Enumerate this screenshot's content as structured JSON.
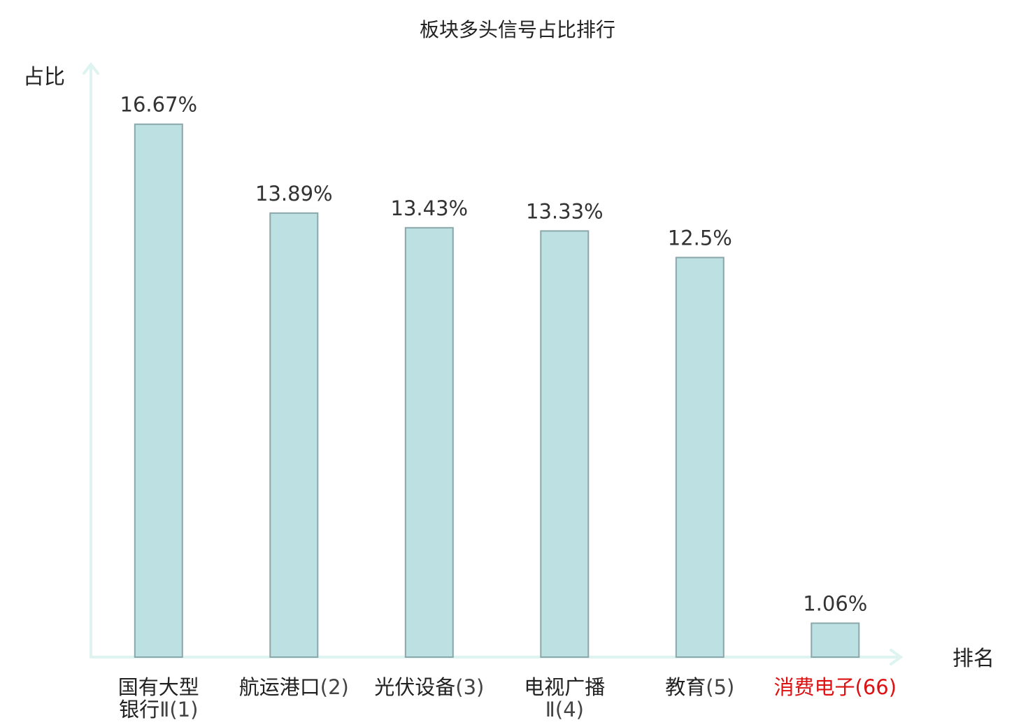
{
  "chart_data": {
    "type": "bar",
    "title": "板块多头信号占比排行",
    "ylabel": "占比",
    "xlabel": "排名",
    "unit": "%",
    "ylim": [
      0,
      18.5
    ],
    "grid": false,
    "categories": [
      {
        "lines": [
          {
            "name": "国有大型",
            "rank": ""
          },
          {
            "name": "银行",
            "rank": "Ⅱ(1)"
          }
        ],
        "highlight": false
      },
      {
        "lines": [
          {
            "name": "航运港口",
            "rank": "(2)"
          }
        ],
        "highlight": false
      },
      {
        "lines": [
          {
            "name": "光伏设备",
            "rank": "(3)"
          }
        ],
        "highlight": false
      },
      {
        "lines": [
          {
            "name": "电视广播",
            "rank": ""
          },
          {
            "name": "",
            "rank": "Ⅱ(4)"
          }
        ],
        "highlight": false
      },
      {
        "lines": [
          {
            "name": "教育",
            "rank": "(5)"
          }
        ],
        "highlight": false
      },
      {
        "lines": [
          {
            "name": "消费电子",
            "rank": "(66)"
          }
        ],
        "highlight": true
      }
    ],
    "values": [
      16.67,
      13.89,
      13.43,
      13.33,
      12.5,
      1.06
    ],
    "value_labels": [
      "16.67%",
      "13.89%",
      "13.43%",
      "13.33%",
      "12.5%",
      "1.06%"
    ],
    "colors": {
      "bar_fill": "#bde0e2",
      "bar_stroke": "#8aa7a9",
      "axis": "#dff3f0",
      "highlight": "#dd1111"
    }
  }
}
